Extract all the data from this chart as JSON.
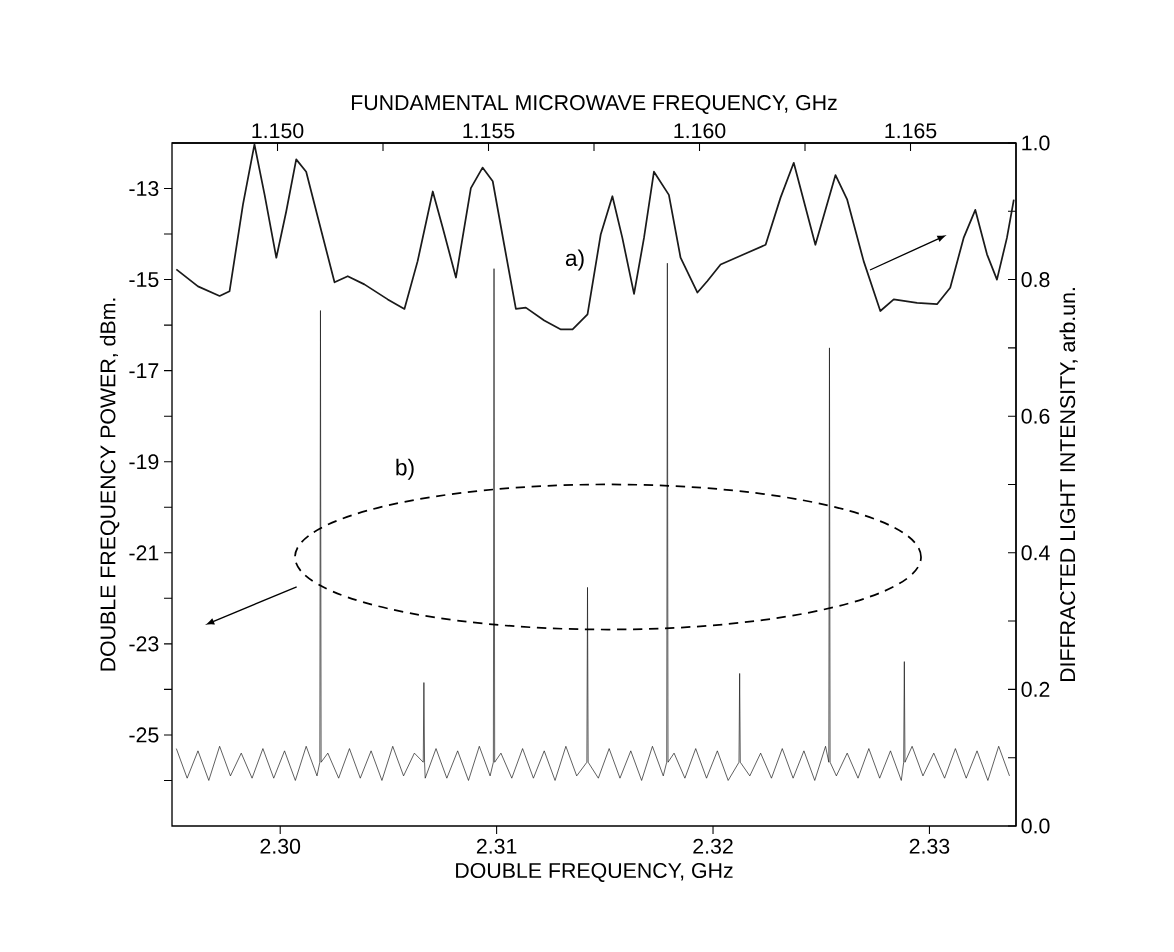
{
  "chart_data": {
    "type": "line",
    "xlabel": "DOUBLE FREQUENCY, GHz",
    "x2label": "FUNDAMENTAL MICROWAVE FREQUENCY, GHz",
    "ylabel": "DOUBLE FREQUENCY POWER, dBm.",
    "y2label": "DIFFRACTED LIGHT INTENSITY, arb.un.",
    "xlim": [
      2.295,
      2.334
    ],
    "xticks": [
      {
        "value": 2.3,
        "label": "2.30"
      },
      {
        "value": 2.31,
        "label": "2.31"
      },
      {
        "value": 2.32,
        "label": "2.32"
      },
      {
        "value": 2.33,
        "label": "2.33"
      }
    ],
    "x2lim": [
      1.1475,
      1.1675
    ],
    "x2ticks": [
      {
        "value": 1.15,
        "label": "1.150"
      },
      {
        "value": 1.1525,
        "label": null
      },
      {
        "value": 1.155,
        "label": "1.155"
      },
      {
        "value": 1.1575,
        "label": null
      },
      {
        "value": 1.16,
        "label": "1.160"
      },
      {
        "value": 1.1625,
        "label": null
      },
      {
        "value": 1.165,
        "label": "1.165"
      }
    ],
    "ylim": [
      -27,
      -12
    ],
    "yticks": [
      -13,
      {
        "value": -14,
        "label": null
      },
      -15,
      {
        "value": -16,
        "label": null
      },
      -17,
      {
        "value": -18,
        "label": null
      },
      -19,
      {
        "value": -20,
        "label": null
      },
      -21,
      {
        "value": -22,
        "label": null
      },
      -23,
      {
        "value": -24,
        "label": null
      },
      -25,
      {
        "value": -26,
        "label": null
      }
    ],
    "y2lim": [
      0,
      1
    ],
    "y2ticks": [
      {
        "value": 0,
        "label": "0.0"
      },
      {
        "value": 0.1,
        "label": null
      },
      0.2,
      {
        "value": 0.3,
        "label": null
      },
      0.4,
      {
        "value": 0.5,
        "label": null
      },
      0.6,
      {
        "value": 0.7,
        "label": null
      },
      0.8,
      {
        "value": 0.9,
        "label": null
      },
      {
        "value": 1,
        "label": "1.0"
      }
    ],
    "marker": "none",
    "line_style": "solid",
    "annotations": [
      "a)",
      "b)"
    ],
    "series": [
      {
        "axis": "y2",
        "color": "#1a1a1a",
        "x": [
          2.2952,
          2.2962,
          2.2972,
          2.29766,
          2.29828,
          2.29881,
          2.29928,
          2.29982,
          2.30028,
          2.30074,
          2.3012,
          2.30174,
          2.30251,
          2.30312,
          2.30389,
          2.30497,
          2.30574,
          2.30635,
          2.30705,
          2.30751,
          2.30812,
          2.30881,
          2.30935,
          2.30982,
          2.31035,
          2.31089,
          2.31135,
          2.3122,
          2.31297,
          2.31351,
          2.3142,
          2.31481,
          2.31535,
          2.31581,
          2.31635,
          2.31681,
          2.31727,
          2.31796,
          2.3185,
          2.31928,
          2.31974,
          2.32035,
          2.32143,
          2.32243,
          2.32312,
          2.32373,
          2.32473,
          2.32566,
          2.3262,
          2.32696,
          2.32773,
          2.32835,
          2.32943,
          2.33035,
          2.33096,
          2.33158,
          2.33212,
          2.33266,
          2.33312,
          2.33358,
          2.3339
        ],
        "values": [
          0.815,
          0.79,
          0.776,
          0.783,
          0.91,
          0.998,
          0.924,
          0.832,
          0.9,
          0.976,
          0.958,
          0.891,
          0.796,
          0.805,
          0.793,
          0.771,
          0.757,
          0.827,
          0.929,
          0.876,
          0.803,
          0.934,
          0.964,
          0.944,
          0.851,
          0.757,
          0.759,
          0.74,
          0.727,
          0.727,
          0.749,
          0.866,
          0.922,
          0.861,
          0.779,
          0.861,
          0.958,
          0.924,
          0.832,
          0.781,
          0.798,
          0.822,
          0.837,
          0.851,
          0.92,
          0.971,
          0.851,
          0.953,
          0.917,
          0.827,
          0.754,
          0.771,
          0.766,
          0.764,
          0.788,
          0.861,
          0.902,
          0.837,
          0.8,
          0.861,
          0.917
        ]
      },
      {
        "color": "#111111",
        "x": [
          2.2952,
          2.2957,
          2.2962,
          2.2967,
          2.2972,
          2.2977,
          2.2982,
          2.2987,
          2.2992,
          2.2997,
          2.3002,
          2.3007,
          2.3012,
          2.3017,
          2.30183,
          2.30186,
          2.30189,
          2.3022,
          2.3027,
          2.3032,
          2.3037,
          2.3042,
          2.3047,
          2.3052,
          2.3057,
          2.3062,
          2.30661,
          2.30664,
          2.30667,
          2.3067,
          2.3072,
          2.3077,
          2.3082,
          2.3087,
          2.3092,
          2.3097,
          2.30985,
          2.30988,
          2.30991,
          2.3102,
          2.3107,
          2.3112,
          2.3117,
          2.3122,
          2.3127,
          2.3132,
          2.3137,
          2.31417,
          2.3142,
          2.31423,
          2.3147,
          2.3152,
          2.3157,
          2.3162,
          2.3167,
          2.3172,
          2.3177,
          2.31786,
          2.31789,
          2.31792,
          2.3182,
          2.3187,
          2.3192,
          2.3197,
          2.3202,
          2.3207,
          2.3212,
          2.32123,
          2.32126,
          2.3217,
          2.3222,
          2.3227,
          2.3232,
          2.3237,
          2.3242,
          2.3247,
          2.3252,
          2.32535,
          2.32538,
          2.32541,
          2.3257,
          2.3262,
          2.3267,
          2.3272,
          2.3277,
          2.3282,
          2.3287,
          2.32881,
          2.32884,
          2.32887,
          2.3292,
          2.3297,
          2.3302,
          2.3307,
          2.3312,
          2.3317,
          2.3322,
          2.3327,
          2.3332,
          2.3337
        ],
        "values": [
          -25.3,
          -25.95,
          -25.35,
          -26.0,
          -25.25,
          -25.9,
          -25.4,
          -25.95,
          -25.3,
          -25.95,
          -25.35,
          -26.0,
          -25.25,
          -25.9,
          -25.6,
          -15.68,
          -25.6,
          -25.4,
          -25.95,
          -25.3,
          -25.95,
          -25.35,
          -26.0,
          -25.25,
          -25.9,
          -25.4,
          -25.6,
          -23.85,
          -25.6,
          -25.95,
          -25.3,
          -25.95,
          -25.35,
          -26.0,
          -25.25,
          -25.9,
          -25.6,
          -14.76,
          -25.6,
          -25.4,
          -25.95,
          -25.3,
          -25.95,
          -25.35,
          -26.0,
          -25.25,
          -25.9,
          -25.6,
          -21.76,
          -25.6,
          -25.95,
          -25.3,
          -25.95,
          -25.35,
          -26.0,
          -25.25,
          -25.9,
          -25.6,
          -14.64,
          -25.6,
          -25.4,
          -25.95,
          -25.3,
          -25.95,
          -25.35,
          -26.0,
          -25.6,
          -23.65,
          -25.6,
          -25.9,
          -25.4,
          -25.95,
          -25.3,
          -25.95,
          -25.35,
          -26.0,
          -25.25,
          -25.6,
          -16.5,
          -25.6,
          -25.9,
          -25.4,
          -25.95,
          -25.3,
          -25.95,
          -25.35,
          -26.0,
          -25.6,
          -23.39,
          -25.6,
          -25.25,
          -25.9,
          -25.4,
          -25.95,
          -25.3,
          -25.95,
          -25.35,
          -26.0,
          -25.25,
          -25.9
        ]
      }
    ]
  }
}
